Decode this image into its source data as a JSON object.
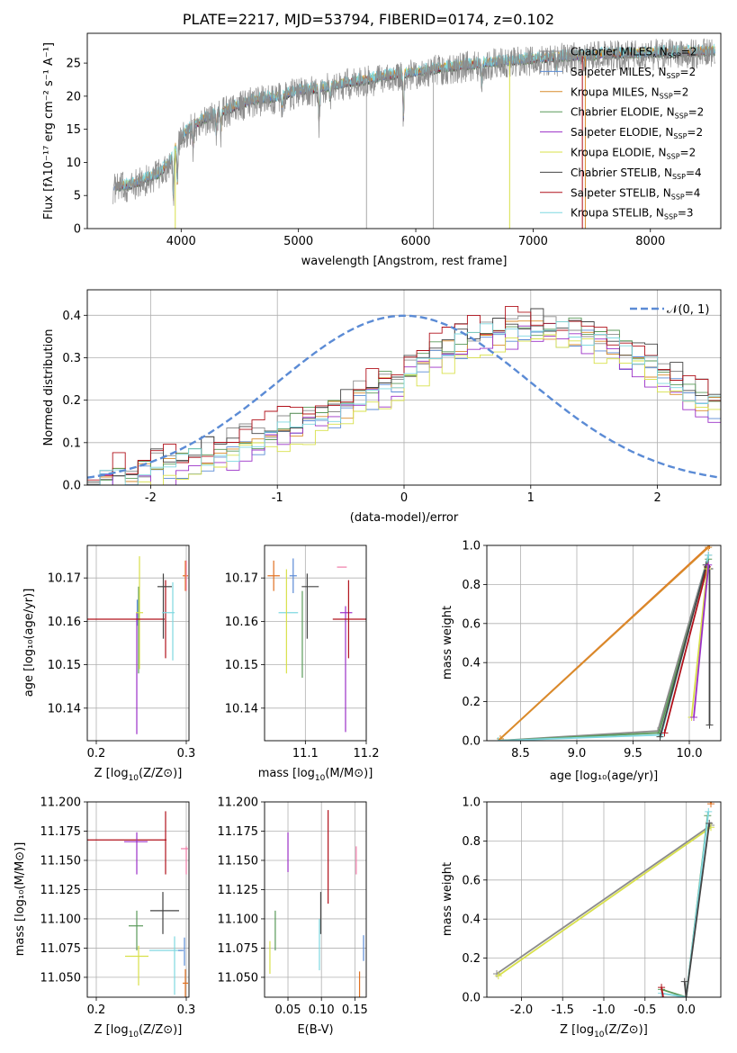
{
  "title": "PLATE=2217, MJD=53794, FIBERID=0174, z=0.102",
  "colors": {
    "Chabrier MILES": "#8c8c8c",
    "Salpeter MILES": "#5b8bd5",
    "Kroupa MILES": "#d98c2b",
    "Chabrier ELODIE": "#5a9a5a",
    "Salpeter ELODIE": "#9b30c7",
    "Kroupa ELODIE": "#d8e04a",
    "Chabrier STELIB": "#444444",
    "Salpeter STELIB": "#b0101a",
    "Kroupa STELIB": "#7fd8e0",
    "gauss": "#5b8bd5",
    "pink": "#f07ca8",
    "orange": "#e07020"
  },
  "chart_data": [
    {
      "type": "line",
      "panel": "spectrum",
      "xlabel": "wavelength [Angstrom, rest frame]",
      "ylabel": "Flux [fλ10⁻¹⁷ erg cm⁻² s⁻¹ A⁻¹]",
      "xlim": [
        3200,
        8600
      ],
      "ylim": [
        0,
        29.5
      ],
      "xticks": [
        4000,
        5000,
        6000,
        7000,
        8000
      ],
      "yticks": [
        0,
        5,
        10,
        15,
        20,
        25
      ],
      "legend_position": "right",
      "legend": [
        {
          "base": "Chabrier MILES, N",
          "sub": "SSP",
          "tail": "=2"
        },
        {
          "base": "Salpeter MILES, N",
          "sub": "SSP",
          "tail": "=2"
        },
        {
          "base": "Kroupa MILES, N",
          "sub": "SSP",
          "tail": "=2"
        },
        {
          "base": "Chabrier ELODIE, N",
          "sub": "SSP",
          "tail": "=2"
        },
        {
          "base": "Salpeter ELODIE, N",
          "sub": "SSP",
          "tail": "=2"
        },
        {
          "base": "Kroupa ELODIE, N",
          "sub": "SSP",
          "tail": "=2"
        },
        {
          "base": "Chabrier STELIB, N",
          "sub": "SSP",
          "tail": "=4"
        },
        {
          "base": "Salpeter STELIB, N",
          "sub": "SSP",
          "tail": "=4"
        },
        {
          "base": "Kroupa STELIB, N",
          "sub": "SSP",
          "tail": "=3"
        }
      ],
      "continuum": [
        [
          3420,
          6.3
        ],
        [
          3550,
          6.5
        ],
        [
          3700,
          7.5
        ],
        [
          3800,
          8.2
        ],
        [
          3900,
          10
        ],
        [
          3960,
          12.5
        ],
        [
          4050,
          14.8
        ],
        [
          4200,
          16.6
        ],
        [
          4400,
          18
        ],
        [
          4600,
          19.3
        ],
        [
          4850,
          20
        ],
        [
          5000,
          20.8
        ],
        [
          5200,
          21.2
        ],
        [
          5400,
          22
        ],
        [
          5600,
          22.5
        ],
        [
          5800,
          23.2
        ],
        [
          6000,
          23.6
        ],
        [
          6200,
          24.2
        ],
        [
          6400,
          24.6
        ],
        [
          6600,
          25
        ],
        [
          6800,
          25.3
        ],
        [
          7000,
          25.6
        ],
        [
          7200,
          25.9
        ],
        [
          7400,
          26
        ],
        [
          7600,
          26.3
        ],
        [
          7800,
          26.4
        ],
        [
          8000,
          26.5
        ],
        [
          8200,
          26.6
        ],
        [
          8400,
          26.7
        ],
        [
          8550,
          26.8
        ]
      ],
      "absorption": [
        [
          3934,
          7
        ],
        [
          3968,
          6
        ],
        [
          4102,
          3
        ],
        [
          4300,
          3
        ],
        [
          4340,
          3
        ],
        [
          4861,
          2.5
        ],
        [
          5175,
          5
        ],
        [
          5270,
          2
        ],
        [
          5895,
          7
        ],
        [
          6563,
          3
        ],
        [
          7200,
          2
        ]
      ],
      "vertical_drops": [
        3950,
        5580,
        6150,
        6800,
        7420,
        7445
      ]
    },
    {
      "type": "step",
      "panel": "residuals",
      "xlabel": "(data-model)/error",
      "ylabel": "Normed distribution",
      "xlim": [
        -2.5,
        2.5
      ],
      "ylim": [
        0,
        0.46
      ],
      "xticks": [
        -2,
        -1,
        0,
        1,
        2
      ],
      "yticks": [
        0.0,
        0.1,
        0.2,
        0.3,
        0.4
      ],
      "gauss_label": "𝒩(0, 1)",
      "gauss_mu": 0,
      "gauss_sigma": 1,
      "bin_width": 0.1,
      "hist_envelope": [
        [
          -2.5,
          0.01
        ],
        [
          -2,
          0.03
        ],
        [
          -1.5,
          0.07
        ],
        [
          -1,
          0.12
        ],
        [
          -0.5,
          0.18
        ],
        [
          -0.1,
          0.24
        ],
        [
          0.2,
          0.3
        ],
        [
          0.6,
          0.35
        ],
        [
          1,
          0.37
        ],
        [
          1.5,
          0.35
        ],
        [
          2,
          0.27
        ],
        [
          2.5,
          0.17
        ]
      ],
      "hist_shifts": [
        0.02,
        -0.01,
        0.0,
        0.01,
        -0.02,
        -0.03,
        0.025,
        0.03,
        0.0
      ]
    },
    {
      "type": "errorbar",
      "panel": "age-vs-Z",
      "xlabel_main": "Z [log",
      "xlabel_tail": "(Z/Z⊙)]",
      "ylabel": "age  [log₁₀(age/yr)]",
      "xlim": [
        0.19,
        0.303
      ],
      "ylim": [
        10.1325,
        10.1775
      ],
      "xticks": [
        0.2,
        0.3
      ],
      "yticks": [
        10.14,
        10.15,
        10.16,
        10.17
      ],
      "points": [
        {
          "x": 0.2455,
          "y": 10.162,
          "xerr": 0.0,
          "yerr": 0.003,
          "c": "Salpeter MILES"
        },
        {
          "x": 0.247,
          "y": 10.158,
          "xerr": 0.0,
          "yerr": 0.01,
          "c": "Chabrier ELODIE"
        },
        {
          "x": 0.245,
          "y": 10.148,
          "xerr": 0.0,
          "yerr": 0.014,
          "c": "Salpeter ELODIE"
        },
        {
          "x": 0.248,
          "y": 10.162,
          "xerr": 0.004,
          "yerr": 0.013,
          "c": "Kroupa ELODIE"
        },
        {
          "x": 0.221,
          "y": 10.1605,
          "xerr": 0.055,
          "yerr": 0.0,
          "c": "Salpeter STELIB"
        },
        {
          "x": 0.277,
          "y": 10.1605,
          "xerr": 0.0,
          "yerr": 0.009,
          "c": "Salpeter STELIB"
        },
        {
          "x": 0.276,
          "y": 10.168,
          "xerr": 0.008,
          "yerr": 0.0,
          "c": "Chabrier STELIB"
        },
        {
          "x": 0.2745,
          "y": 10.1635,
          "xerr": 0.0,
          "yerr": 0.0075,
          "c": "Chabrier STELIB"
        },
        {
          "x": 0.28,
          "y": 10.162,
          "xerr": 0.007,
          "yerr": 0.0,
          "c": "Kroupa STELIB"
        },
        {
          "x": 0.285,
          "y": 10.16,
          "xerr": 0.0,
          "yerr": 0.009,
          "c": "Kroupa STELIB"
        },
        {
          "x": 0.299,
          "y": 10.1705,
          "xerr": 0.003,
          "yerr": 0.0035,
          "c": "orange"
        },
        {
          "x": 0.3,
          "y": 10.1705,
          "xerr": 0.0,
          "yerr": 0.0035,
          "c": "pink"
        }
      ]
    },
    {
      "type": "errorbar",
      "panel": "age-vs-mass",
      "xlabel_main": "mass [log",
      "xlabel_tail": "(M/M⊙)]",
      "ylim": [
        10.1325,
        10.1775
      ],
      "xlim": [
        11.033,
        11.2
      ],
      "xticks": [
        11.1,
        11.2
      ],
      "yticks": [
        10.14,
        10.15,
        10.16,
        10.17
      ],
      "points": [
        {
          "x": 11.048,
          "y": 10.1705,
          "xerr": 0.01,
          "yerr": 0.0035,
          "c": "orange"
        },
        {
          "x": 11.08,
          "y": 10.1705,
          "xerr": 0.006,
          "yerr": 0.004,
          "c": "Salpeter MILES"
        },
        {
          "x": 11.072,
          "y": 10.162,
          "xerr": 0.016,
          "yerr": 0.0,
          "c": "Kroupa STELIB"
        },
        {
          "x": 11.069,
          "y": 10.16,
          "xerr": 0.0,
          "yerr": 0.012,
          "c": "Kroupa ELODIE"
        },
        {
          "x": 11.095,
          "y": 10.157,
          "xerr": 0.0,
          "yerr": 0.01,
          "c": "Chabrier ELODIE"
        },
        {
          "x": 11.108,
          "y": 10.168,
          "xerr": 0.014,
          "yerr": 0.0,
          "c": "Chabrier STELIB"
        },
        {
          "x": 11.103,
          "y": 10.1635,
          "xerr": 0.0,
          "yerr": 0.0075,
          "c": "Chabrier STELIB"
        },
        {
          "x": 11.16,
          "y": 10.1725,
          "xerr": 0.008,
          "yerr": 0.0,
          "c": "pink"
        },
        {
          "x": 11.167,
          "y": 10.162,
          "xerr": 0.01,
          "yerr": 0.0,
          "c": "Salpeter ELODIE"
        },
        {
          "x": 11.166,
          "y": 10.149,
          "xerr": 0.0,
          "yerr": 0.0145,
          "c": "Salpeter ELODIE"
        },
        {
          "x": 11.175,
          "y": 10.1605,
          "xerr": 0.03,
          "yerr": 0.0,
          "c": "Salpeter STELIB"
        },
        {
          "x": 11.171,
          "y": 10.1605,
          "xerr": 0.0,
          "yerr": 0.009,
          "c": "Salpeter STELIB"
        }
      ]
    },
    {
      "type": "line",
      "panel": "weight-vs-age",
      "xlabel": "age  [log₁₀(age/yr)]",
      "ylabel": "mass weight",
      "xlim": [
        8.2,
        10.28
      ],
      "ylim": [
        0,
        1
      ],
      "xticks": [
        8.5,
        9.0,
        9.5,
        10.0
      ],
      "yticks": [
        0.0,
        0.2,
        0.4,
        0.6,
        0.8,
        1.0
      ],
      "series": [
        {
          "c": "orange",
          "x": [
            8.3,
            10.18
          ],
          "y": [
            0.0,
            1.0
          ]
        },
        {
          "c": "Kroupa MILES",
          "x": [
            8.32,
            10.17
          ],
          "y": [
            0.01,
            0.99
          ]
        },
        {
          "c": "Chabrier MILES",
          "x": [
            8.3,
            9.72,
            10.17
          ],
          "y": [
            0.0,
            0.05,
            0.95
          ]
        },
        {
          "c": "Chabrier ELODIE",
          "x": [
            8.3,
            9.73,
            10.17
          ],
          "y": [
            0.0,
            0.04,
            0.93
          ]
        },
        {
          "c": "Kroupa STELIB",
          "x": [
            8.3,
            9.75,
            10.17
          ],
          "y": [
            0.0,
            0.03,
            0.95
          ]
        },
        {
          "c": "Salpeter STELIB",
          "x": [
            9.78,
            10.16
          ],
          "y": [
            0.04,
            0.89
          ]
        },
        {
          "c": "Chabrier STELIB",
          "x": [
            9.74,
            10.15,
            10.18,
            10.18
          ],
          "y": [
            0.02,
            0.9,
            0.88,
            0.08
          ]
        },
        {
          "c": "Kroupa ELODIE",
          "x": [
            10.02,
            10.16
          ],
          "y": [
            0.12,
            0.88
          ]
        },
        {
          "c": "Salpeter ELODIE",
          "x": [
            10.04,
            10.17
          ],
          "y": [
            0.12,
            0.9
          ]
        }
      ]
    },
    {
      "type": "errorbar",
      "panel": "mass-vs-Z",
      "xlabel_main": "Z [log",
      "xlabel_tail": "(Z/Z⊙)]",
      "ylabel": "mass [log₁₀(M/M⊙)]",
      "xlim": [
        0.19,
        0.303
      ],
      "ylim": [
        11.033,
        11.2
      ],
      "xticks": [
        0.2,
        0.3
      ],
      "yticks": [
        11.05,
        11.075,
        11.1,
        11.125,
        11.15,
        11.175,
        11.2
      ],
      "points": [
        {
          "x": 0.22,
          "y": 11.1675,
          "xerr": 0.058,
          "yerr": 0.0,
          "c": "Salpeter STELIB"
        },
        {
          "x": 0.277,
          "y": 11.165,
          "xerr": 0.0,
          "yerr": 0.027,
          "c": "Salpeter STELIB"
        },
        {
          "x": 0.244,
          "y": 11.166,
          "xerr": 0.013,
          "yerr": 0.0,
          "c": "Salpeter ELODIE"
        },
        {
          "x": 0.245,
          "y": 11.156,
          "xerr": 0.0,
          "yerr": 0.018,
          "c": "Salpeter ELODIE"
        },
        {
          "x": 0.244,
          "y": 11.094,
          "xerr": 0.008,
          "yerr": 0.0,
          "c": "Chabrier ELODIE"
        },
        {
          "x": 0.245,
          "y": 11.09,
          "xerr": 0.0,
          "yerr": 0.017,
          "c": "Chabrier ELODIE"
        },
        {
          "x": 0.245,
          "y": 11.068,
          "xerr": 0.013,
          "yerr": 0.0,
          "c": "Kroupa ELODIE"
        },
        {
          "x": 0.247,
          "y": 11.06,
          "xerr": 0.0,
          "yerr": 0.017,
          "c": "Kroupa ELODIE"
        },
        {
          "x": 0.276,
          "y": 11.107,
          "xerr": 0.016,
          "yerr": 0.0,
          "c": "Chabrier STELIB"
        },
        {
          "x": 0.274,
          "y": 11.105,
          "xerr": 0.0,
          "yerr": 0.018,
          "c": "Chabrier STELIB"
        },
        {
          "x": 0.277,
          "y": 11.073,
          "xerr": 0.018,
          "yerr": 0.0,
          "c": "Kroupa STELIB"
        },
        {
          "x": 0.287,
          "y": 11.06,
          "xerr": 0.0,
          "yerr": 0.025,
          "c": "Kroupa STELIB"
        },
        {
          "x": 0.294,
          "y": 11.073,
          "xerr": 0.003,
          "yerr": 0.0,
          "c": "Salpeter MILES"
        },
        {
          "x": 0.298,
          "y": 11.072,
          "xerr": 0.0,
          "yerr": 0.012,
          "c": "Salpeter MILES"
        },
        {
          "x": 0.298,
          "y": 11.16,
          "xerr": 0.004,
          "yerr": 0.0,
          "c": "pink"
        },
        {
          "x": 0.3,
          "y": 11.15,
          "xerr": 0.0,
          "yerr": 0.012,
          "c": "pink"
        },
        {
          "x": 0.299,
          "y": 11.045,
          "xerr": 0.003,
          "yerr": 0.012,
          "c": "orange"
        }
      ]
    },
    {
      "type": "errorbar",
      "panel": "mass-vs-EBV",
      "xlabel": "E(B-V)",
      "xlim": [
        0.015,
        0.167
      ],
      "ylim": [
        11.033,
        11.2
      ],
      "xticks": [
        0.05,
        0.1,
        0.15
      ],
      "yticks": [
        11.05,
        11.075,
        11.1,
        11.125,
        11.15,
        11.175,
        11.2
      ],
      "points": [
        {
          "x": 0.023,
          "y": 11.067,
          "xerr": 0.0,
          "yerr": 0.014,
          "c": "Kroupa ELODIE"
        },
        {
          "x": 0.031,
          "y": 11.09,
          "xerr": 0.0,
          "yerr": 0.017,
          "c": "Chabrier ELODIE"
        },
        {
          "x": 0.05,
          "y": 11.157,
          "xerr": 0.0,
          "yerr": 0.017,
          "c": "Salpeter ELODIE"
        },
        {
          "x": 0.097,
          "y": 11.078,
          "xerr": 0.0,
          "yerr": 0.022,
          "c": "Kroupa STELIB"
        },
        {
          "x": 0.099,
          "y": 11.105,
          "xerr": 0.0,
          "yerr": 0.018,
          "c": "Chabrier STELIB"
        },
        {
          "x": 0.11,
          "y": 11.153,
          "xerr": 0.0,
          "yerr": 0.04,
          "c": "Salpeter STELIB"
        },
        {
          "x": 0.152,
          "y": 11.15,
          "xerr": 0.0,
          "yerr": 0.012,
          "c": "pink"
        },
        {
          "x": 0.157,
          "y": 11.044,
          "xerr": 0.0,
          "yerr": 0.011,
          "c": "orange"
        },
        {
          "x": 0.163,
          "y": 11.075,
          "xerr": 0.0,
          "yerr": 0.011,
          "c": "Salpeter MILES"
        }
      ]
    },
    {
      "type": "line",
      "panel": "weight-vs-Z",
      "xlabel_main": "Z [log",
      "xlabel_tail": "(Z/Z⊙)]",
      "ylabel": "mass weight",
      "xlim": [
        -2.42,
        0.42
      ],
      "ylim": [
        0,
        1
      ],
      "xticks": [
        -2.0,
        -1.5,
        -1.0,
        -0.5,
        0.0
      ],
      "yticks": [
        0.0,
        0.2,
        0.4,
        0.6,
        0.8,
        1.0
      ],
      "series": [
        {
          "c": "Chabrier MILES",
          "x": [
            -2.3,
            0.3
          ],
          "y": [
            0.12,
            0.88
          ]
        },
        {
          "c": "Kroupa ELODIE",
          "x": [
            -2.28,
            0.3
          ],
          "y": [
            0.11,
            0.87
          ]
        },
        {
          "c": "orange",
          "x": [
            0.3,
            0.3
          ],
          "y": [
            0.99,
            1.0
          ]
        },
        {
          "c": "Chabrier ELODIE",
          "x": [
            -0.3,
            0.0,
            0.26
          ],
          "y": [
            0.04,
            0.0,
            0.93
          ]
        },
        {
          "c": "Kroupa STELIB",
          "x": [
            -0.3,
            0.0,
            0.27
          ],
          "y": [
            0.02,
            0.0,
            0.95
          ]
        },
        {
          "c": "Chabrier STELIB",
          "x": [
            -0.02,
            0.0,
            0.28
          ],
          "y": [
            0.08,
            0.0,
            0.89
          ]
        },
        {
          "c": "Salpeter STELIB",
          "x": [
            -0.3,
            -0.28
          ],
          "y": [
            0.05,
            0.0
          ]
        }
      ]
    }
  ]
}
